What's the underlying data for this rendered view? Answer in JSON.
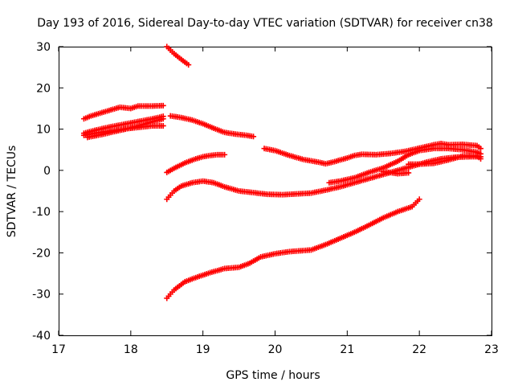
{
  "chart_data": {
    "type": "scatter",
    "title": "Day 193 of 2016, Sidereal Day-to-day VTEC variation (SDTVAR) for receiver cn38",
    "xlabel": "GPS time / hours",
    "ylabel": "SDTVAR / TECUs",
    "xlim": [
      17,
      23
    ],
    "ylim": [
      -40,
      30
    ],
    "xticks": [
      "17",
      "18",
      "19",
      "20",
      "21",
      "22",
      "23"
    ],
    "yticks": [
      "-40",
      "-30",
      "-20",
      "-10",
      "0",
      "10",
      "20",
      "30"
    ],
    "grid": false,
    "legend": "none",
    "marker_color": "#ff0000",
    "marker": "plus",
    "series": [
      {
        "x": [
          18.5,
          18.6,
          18.7,
          18.8
        ],
        "y": [
          30,
          28.3,
          26.9,
          25.6
        ]
      },
      {
        "x": [
          17.35,
          17.45,
          17.6,
          17.75,
          17.85,
          18.0,
          18.1,
          18.2,
          18.3,
          18.45
        ],
        "y": [
          12.5,
          13.2,
          14.0,
          14.8,
          15.3,
          15.0,
          15.6,
          15.6,
          15.6,
          15.7
        ]
      },
      {
        "x": [
          17.35,
          17.5,
          17.7,
          17.9,
          18.0,
          18.2,
          18.3,
          18.45
        ],
        "y": [
          8.5,
          9.0,
          9.5,
          10.0,
          10.2,
          10.6,
          10.8,
          10.8
        ]
      },
      {
        "x": [
          17.35,
          17.5,
          17.7,
          17.85,
          18.0,
          18.15,
          18.3,
          18.45
        ],
        "y": [
          9.0,
          9.7,
          10.5,
          11.0,
          11.5,
          12.0,
          12.5,
          13.1
        ]
      },
      {
        "x": [
          17.4,
          17.6,
          17.8,
          18.0,
          18.15,
          18.3,
          18.45
        ],
        "y": [
          8.0,
          8.7,
          9.5,
          10.3,
          11.0,
          11.8,
          12.5
        ]
      },
      {
        "x": [
          18.55,
          18.7,
          18.85,
          19.0,
          19.15,
          19.3,
          19.45,
          19.6,
          19.7
        ],
        "y": [
          13.2,
          12.8,
          12.2,
          11.3,
          10.2,
          9.2,
          8.8,
          8.5,
          8.2
        ]
      },
      {
        "x": [
          18.5,
          18.6,
          18.75,
          18.9,
          19.0,
          19.1,
          19.2,
          19.3
        ],
        "y": [
          -0.5,
          0.5,
          1.8,
          2.8,
          3.3,
          3.6,
          3.8,
          3.8
        ]
      },
      {
        "x": [
          18.5,
          18.6,
          18.7,
          18.85,
          19.0,
          19.15,
          19.3,
          19.5,
          19.7,
          19.9,
          20.1,
          20.3,
          20.5,
          20.7,
          20.9,
          21.1,
          21.3,
          21.5,
          21.7,
          21.9,
          22.1,
          22.3,
          22.5,
          22.7,
          22.85
        ],
        "y": [
          -7.0,
          -5.0,
          -3.8,
          -3.0,
          -2.6,
          -3.0,
          -4.0,
          -5.0,
          -5.4,
          -5.8,
          -5.9,
          -5.7,
          -5.5,
          -4.8,
          -4.0,
          -3.0,
          -2.0,
          -1.0,
          0.0,
          1.0,
          2.0,
          2.8,
          3.2,
          3.3,
          3.3
        ]
      },
      {
        "x": [
          19.85,
          20.0,
          20.2,
          20.4,
          20.6,
          20.7,
          20.8,
          21.0,
          21.1,
          21.2,
          21.4,
          21.6,
          21.8,
          22.0,
          22.2,
          22.3,
          22.4,
          22.6,
          22.8,
          22.85
        ],
        "y": [
          5.3,
          4.8,
          3.6,
          2.6,
          2.0,
          1.6,
          2.0,
          3.0,
          3.6,
          3.9,
          3.8,
          4.1,
          4.6,
          5.4,
          6.2,
          6.5,
          6.2,
          6.3,
          6.0,
          5.3
        ]
      },
      {
        "x": [
          20.75,
          20.9,
          21.1,
          21.3,
          21.5,
          21.7,
          21.85,
          22.0,
          22.2,
          22.4,
          22.6,
          22.8,
          22.85
        ],
        "y": [
          -3.0,
          -2.6,
          -1.8,
          -0.5,
          0.6,
          2.2,
          3.8,
          4.8,
          5.3,
          5.3,
          5.0,
          4.4,
          4.0
        ]
      },
      {
        "x": [
          21.5,
          21.7,
          21.85
        ],
        "y": [
          -0.3,
          -0.8,
          -0.6
        ]
      },
      {
        "x": [
          21.85,
          22.0,
          22.2,
          22.4,
          22.6,
          22.8,
          22.85
        ],
        "y": [
          1.5,
          1.5,
          1.7,
          2.5,
          3.5,
          3.5,
          2.8
        ]
      },
      {
        "x": [
          18.5,
          18.6,
          18.75,
          18.9,
          19.1,
          19.3,
          19.5,
          19.65,
          19.8,
          20.0,
          20.2,
          20.5,
          20.7,
          20.9,
          21.1,
          21.3,
          21.5,
          21.7,
          21.9,
          22.0
        ],
        "y": [
          -31.0,
          -29.0,
          -27.0,
          -26.0,
          -24.8,
          -23.8,
          -23.5,
          -22.5,
          -21.0,
          -20.2,
          -19.7,
          -19.3,
          -18.0,
          -16.5,
          -15.0,
          -13.3,
          -11.5,
          -10.0,
          -8.8,
          -7.0
        ]
      }
    ]
  }
}
